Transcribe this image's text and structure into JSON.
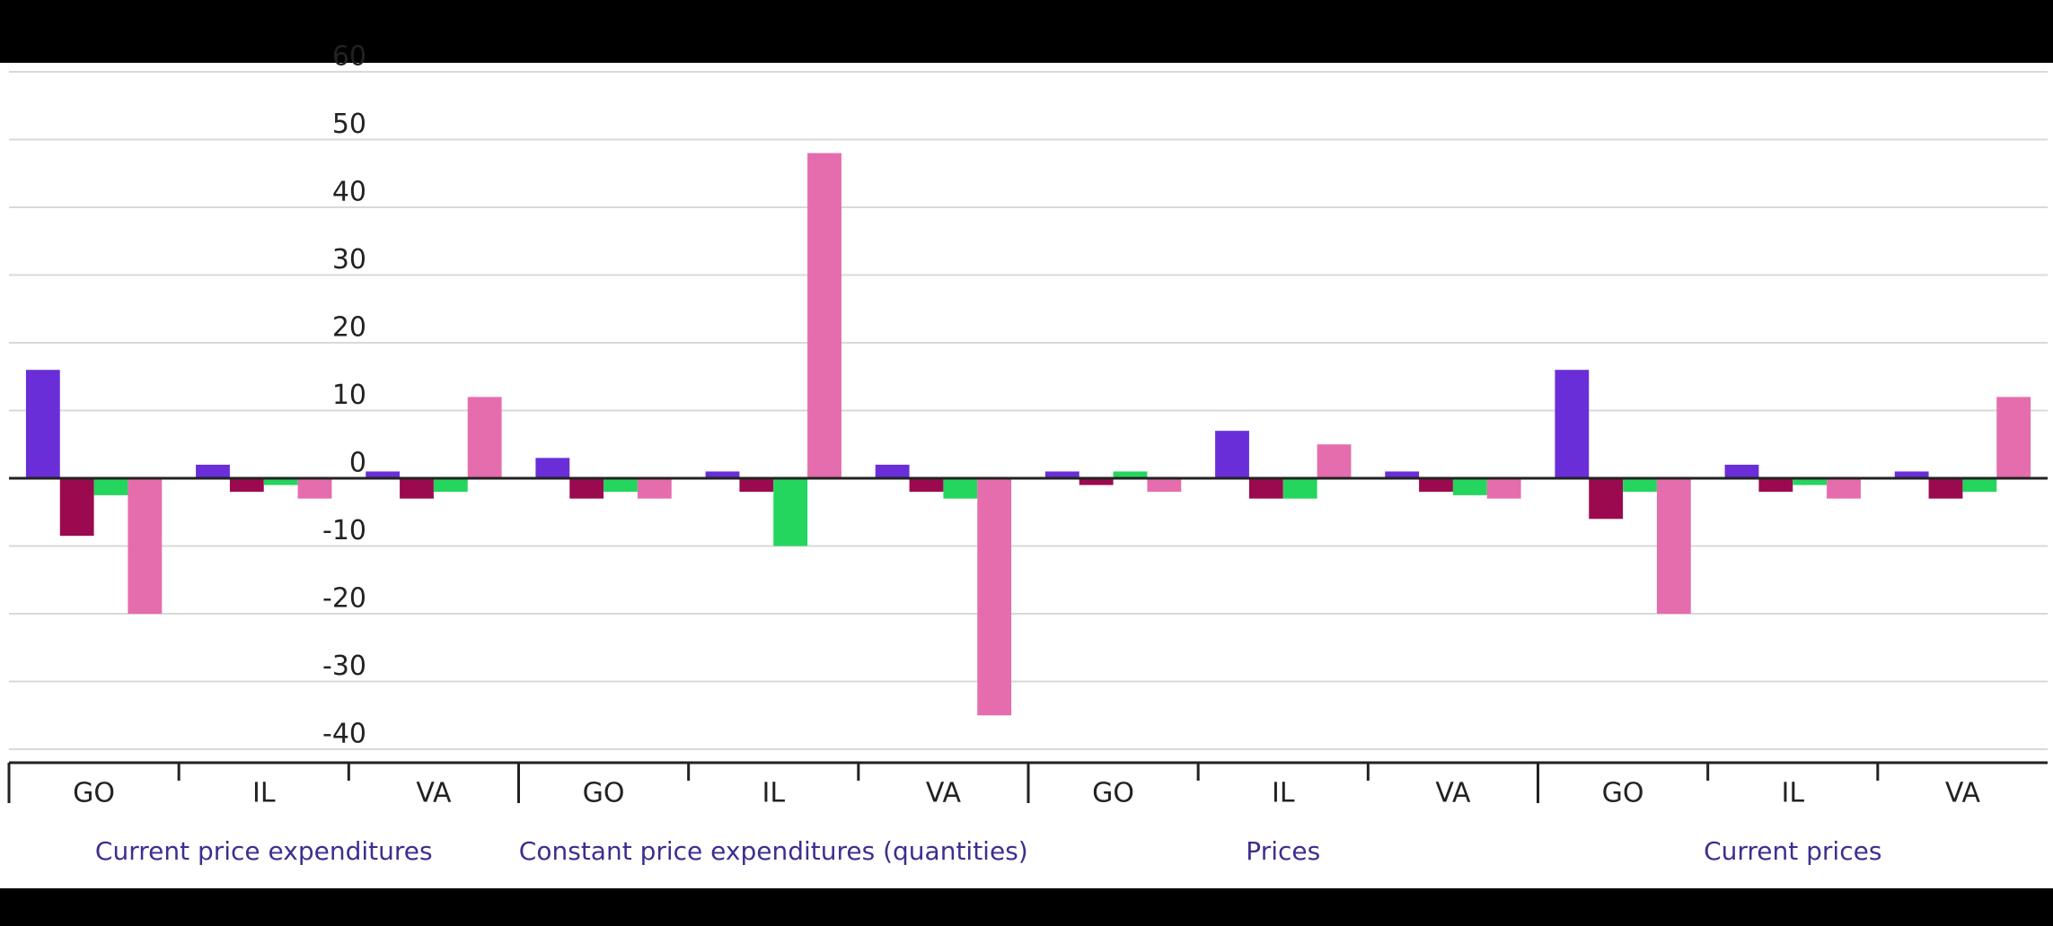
{
  "chart_data": {
    "type": "bar",
    "groups": [
      {
        "label": "Current price expenditures",
        "categories": [
          "GO",
          "IL",
          "VA"
        ]
      },
      {
        "label": "Constant price expenditures (quantities)",
        "categories": [
          "GO",
          "IL",
          "VA"
        ]
      },
      {
        "label": "Prices",
        "categories": [
          "GO",
          "IL",
          "VA"
        ]
      },
      {
        "label": "Current prices",
        "categories": [
          "GO",
          "IL",
          "VA"
        ]
      }
    ],
    "series": [
      {
        "color": "#6a2ed8",
        "values": [
          16,
          2,
          1,
          3,
          1,
          2,
          1,
          7,
          1,
          16,
          2,
          1
        ]
      },
      {
        "color": "#9b0a4f",
        "values": [
          -8.5,
          -2,
          -3,
          -3,
          -2,
          -2,
          -1,
          -3,
          -2,
          -6,
          -2,
          -3
        ]
      },
      {
        "color": "#24d65d",
        "values": [
          -2.5,
          -1,
          -2,
          -2,
          -10,
          -3,
          1,
          -3,
          -2.5,
          -2,
          -1,
          -2
        ]
      },
      {
        "color": "#e56dad",
        "values": [
          -20,
          -3,
          12,
          -3,
          48,
          -35,
          -2,
          5,
          -3,
          -20,
          -3,
          12
        ]
      }
    ],
    "ylim": [
      -40,
      60
    ],
    "yticks": [
      -40,
      -30,
      -20,
      -10,
      0,
      10,
      20,
      30,
      40,
      50,
      60
    ],
    "grid": true
  }
}
